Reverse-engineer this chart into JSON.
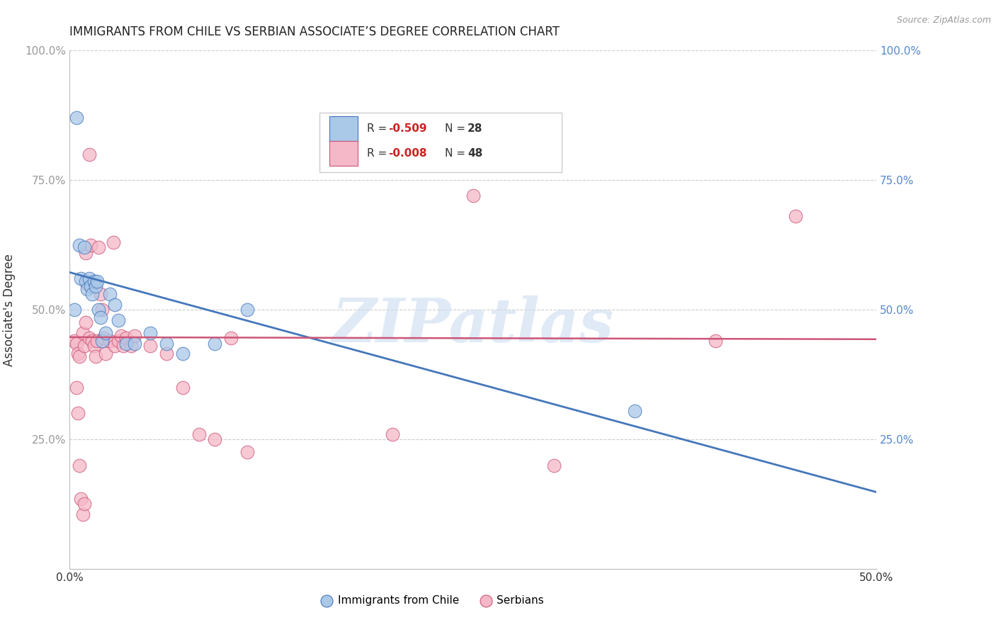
{
  "title": "IMMIGRANTS FROM CHILE VS SERBIAN ASSOCIATE’S DEGREE CORRELATION CHART",
  "source": "Source: ZipAtlas.com",
  "ylabel": "Associate's Degree",
  "xlim": [
    0,
    0.5
  ],
  "ylim": [
    0,
    1.0
  ],
  "yticks": [
    0.0,
    0.25,
    0.5,
    0.75,
    1.0
  ],
  "ytick_labels": [
    "",
    "25.0%",
    "50.0%",
    "75.0%",
    "100.0%"
  ],
  "xticks": [
    0.0,
    0.1,
    0.2,
    0.3,
    0.4,
    0.5
  ],
  "xtick_labels": [
    "0.0%",
    "",
    "",
    "",
    "",
    "50.0%"
  ],
  "chile_R": -0.509,
  "chile_N": 28,
  "serbian_R": -0.008,
  "serbian_N": 48,
  "chile_color": "#aac8e8",
  "serbian_color": "#f5b8c8",
  "chile_line_color": "#4477bb",
  "serbian_line_color": "#cc5577",
  "background_color": "#ffffff",
  "grid_color": "#cccccc",
  "watermark_text": "ZIPatlas",
  "chile_line_x0": 0.0,
  "chile_line_y0": 0.572,
  "chile_line_x1": 0.5,
  "chile_line_y1": 0.148,
  "serbian_line_x0": 0.0,
  "serbian_line_y0": 0.447,
  "serbian_line_x1": 0.5,
  "serbian_line_y1": 0.443,
  "chile_scatter_x": [
    0.003,
    0.006,
    0.007,
    0.009,
    0.01,
    0.011,
    0.012,
    0.013,
    0.014,
    0.015,
    0.016,
    0.017,
    0.018,
    0.019,
    0.02,
    0.022,
    0.025,
    0.028,
    0.03,
    0.035,
    0.04,
    0.05,
    0.06,
    0.07,
    0.09,
    0.11,
    0.35,
    0.004
  ],
  "chile_scatter_y": [
    0.5,
    0.625,
    0.56,
    0.62,
    0.555,
    0.54,
    0.56,
    0.545,
    0.53,
    0.555,
    0.545,
    0.555,
    0.5,
    0.485,
    0.44,
    0.455,
    0.53,
    0.51,
    0.48,
    0.435,
    0.435,
    0.455,
    0.435,
    0.415,
    0.435,
    0.5,
    0.305,
    0.87
  ],
  "serbian_scatter_x": [
    0.003,
    0.004,
    0.005,
    0.006,
    0.008,
    0.009,
    0.01,
    0.011,
    0.012,
    0.013,
    0.014,
    0.015,
    0.016,
    0.017,
    0.018,
    0.019,
    0.02,
    0.021,
    0.022,
    0.025,
    0.027,
    0.028,
    0.03,
    0.032,
    0.033,
    0.035,
    0.038,
    0.04,
    0.05,
    0.06,
    0.07,
    0.08,
    0.09,
    0.1,
    0.11,
    0.2,
    0.25,
    0.3,
    0.4,
    0.45,
    0.004,
    0.005,
    0.006,
    0.007,
    0.008,
    0.009,
    0.01,
    0.012
  ],
  "serbian_scatter_y": [
    0.44,
    0.435,
    0.415,
    0.41,
    0.455,
    0.43,
    0.61,
    0.55,
    0.445,
    0.625,
    0.44,
    0.43,
    0.41,
    0.44,
    0.62,
    0.53,
    0.5,
    0.445,
    0.415,
    0.44,
    0.63,
    0.43,
    0.44,
    0.45,
    0.43,
    0.445,
    0.43,
    0.45,
    0.43,
    0.415,
    0.35,
    0.26,
    0.25,
    0.445,
    0.225,
    0.26,
    0.72,
    0.2,
    0.44,
    0.68,
    0.35,
    0.3,
    0.2,
    0.135,
    0.105,
    0.125,
    0.475,
    0.8
  ]
}
